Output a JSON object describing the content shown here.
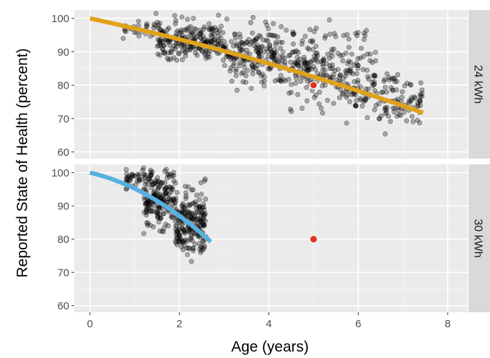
{
  "chart_data": {
    "type": "scatter",
    "xlabel": "Age (years)",
    "ylabel": "Reported State of Health (percent)",
    "x_ticks": [
      0,
      2,
      4,
      6,
      8
    ],
    "y_ticks": [
      60,
      70,
      80,
      90,
      100
    ],
    "xlim": [
      -0.35,
      8.45
    ],
    "ylim": [
      58,
      102.5
    ],
    "grid": true,
    "colors": {
      "panel_bg": "#ebebeb",
      "grid_major": "#ffffff",
      "strip_bg": "#d9d9d9",
      "points": "#000000",
      "highlight": "#e0301e",
      "fit_24": "#e0a21a",
      "fit_30": "#56b0e0",
      "axis_text": "#4d4d4d"
    },
    "panels": [
      {
        "strip_label": "24 kWh",
        "fit_line": {
          "a": 0.0066,
          "b": -0.0386,
          "x_range": [
            0,
            7.45
          ]
        },
        "highlight_point": {
          "x": 5.0,
          "y": 80
        },
        "clusters": [
          {
            "x_range": [
              0.7,
              1.6
            ],
            "y_center": 97,
            "spread": 1.5,
            "count": 30
          },
          {
            "x_range": [
              1.5,
              3.0
            ],
            "y_center": 93,
            "spread": 3,
            "count": 220
          },
          {
            "x_range": [
              3.0,
              4.2
            ],
            "y_center": 89,
            "spread": 4,
            "count": 180
          },
          {
            "x_range": [
              4.2,
              5.5
            ],
            "y_center": 85,
            "spread": 5,
            "count": 160
          },
          {
            "x_range": [
              5.5,
              6.4
            ],
            "y_center": 80,
            "spread": 5,
            "count": 110
          },
          {
            "x_range": [
              6.4,
              7.45
            ],
            "y_center": 76,
            "spread": 4,
            "count": 90
          },
          {
            "x_range": [
              4.5,
              6.2
            ],
            "y_center": 95,
            "spread": 0.6,
            "count": 20
          }
        ]
      },
      {
        "strip_label": "30 kWh",
        "fit_line": {
          "a": -0.063,
          "b": -0.1,
          "x_range": [
            0,
            2.7
          ]
        },
        "highlight_point": {
          "x": 5.0,
          "y": 80
        },
        "clusters": [
          {
            "x_range": [
              0.8,
              1.4
            ],
            "y_center": 98,
            "spread": 2,
            "count": 50
          },
          {
            "x_range": [
              1.2,
              1.9
            ],
            "y_center": 92,
            "spread": 4,
            "count": 180
          },
          {
            "x_range": [
              1.9,
              2.6
            ],
            "y_center": 85,
            "spread": 5,
            "count": 220
          }
        ]
      }
    ]
  }
}
